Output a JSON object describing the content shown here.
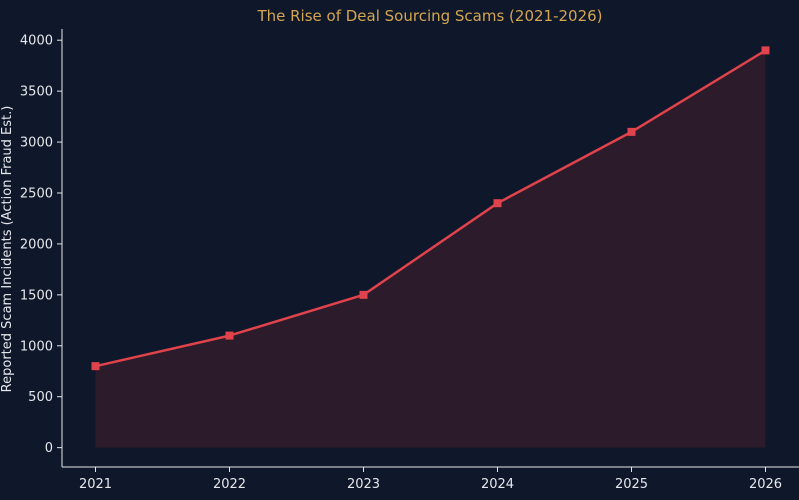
{
  "colors": {
    "background": "#0f172a",
    "axis": "#e5e7eb",
    "tick_text": "#e5e7eb",
    "title": "#d4a650",
    "line": "#e0434b",
    "marker": "#e0434b",
    "area_fill": "#2b1b2b"
  },
  "chart_data": {
    "type": "area",
    "title": "The Rise of Deal Sourcing Scams (2021-2026)",
    "xlabel": "",
    "ylabel": "Reported Scam Incidents (Action Fraud Est.)",
    "x": [
      2021,
      2022,
      2023,
      2024,
      2025,
      2026
    ],
    "x_tick_labels": [
      "2021",
      "2022",
      "2023",
      "2024",
      "2025",
      "2026"
    ],
    "series": [
      {
        "values": [
          800,
          1100,
          1500,
          2400,
          3100,
          3900
        ],
        "marker": "square",
        "filled": true
      }
    ],
    "xlim": [
      2020.75,
      2026.25
    ],
    "ylim": [
      -190,
      4110
    ],
    "y_ticks": [
      0,
      500,
      1000,
      1500,
      2000,
      2500,
      3000,
      3500,
      4000
    ],
    "y_tick_labels": [
      "0",
      "500",
      "1000",
      "1500",
      "2000",
      "2500",
      "3000",
      "3500",
      "4000"
    ],
    "grid": false,
    "legend": "none"
  }
}
